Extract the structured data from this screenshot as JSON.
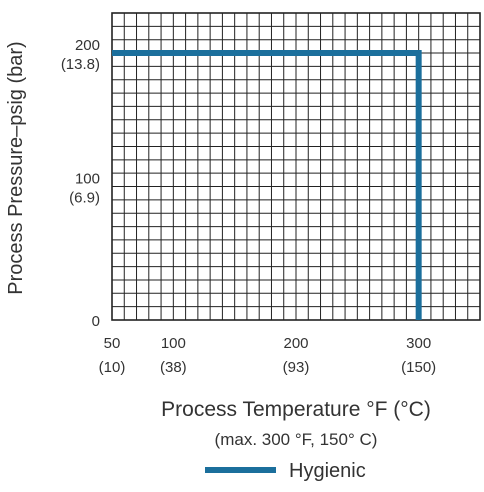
{
  "chart_data": {
    "type": "line",
    "xlabel": "Process Temperature °F (°C)",
    "subtitle": "(max. 300 °F, 150° C)",
    "ylabel": "Process Pressure–psig (bar)",
    "xlim": [
      50,
      350
    ],
    "ylim": [
      0,
      230
    ],
    "x_ticks": [
      {
        "value": 50,
        "label": "50",
        "sublabel": "(10)"
      },
      {
        "value": 100,
        "label": "100",
        "sublabel": "(38)"
      },
      {
        "value": 200,
        "label": "200",
        "sublabel": "(93)"
      },
      {
        "value": 300,
        "label": "300",
        "sublabel": "(150)"
      }
    ],
    "y_ticks": [
      {
        "value": 0,
        "label": "0",
        "sublabel": ""
      },
      {
        "value": 100,
        "label": "100",
        "sublabel": "(6.9)"
      },
      {
        "value": 200,
        "label": "200",
        "sublabel": "(13.8)"
      }
    ],
    "grid": true,
    "x_grid_step": 10,
    "y_grid_step": 10,
    "series": [
      {
        "name": "Hygienic",
        "color": "#1b6f9c",
        "points": [
          [
            50,
            200
          ],
          [
            300,
            200
          ],
          [
            300,
            0
          ]
        ]
      }
    ],
    "legend_position": "bottom-center"
  }
}
